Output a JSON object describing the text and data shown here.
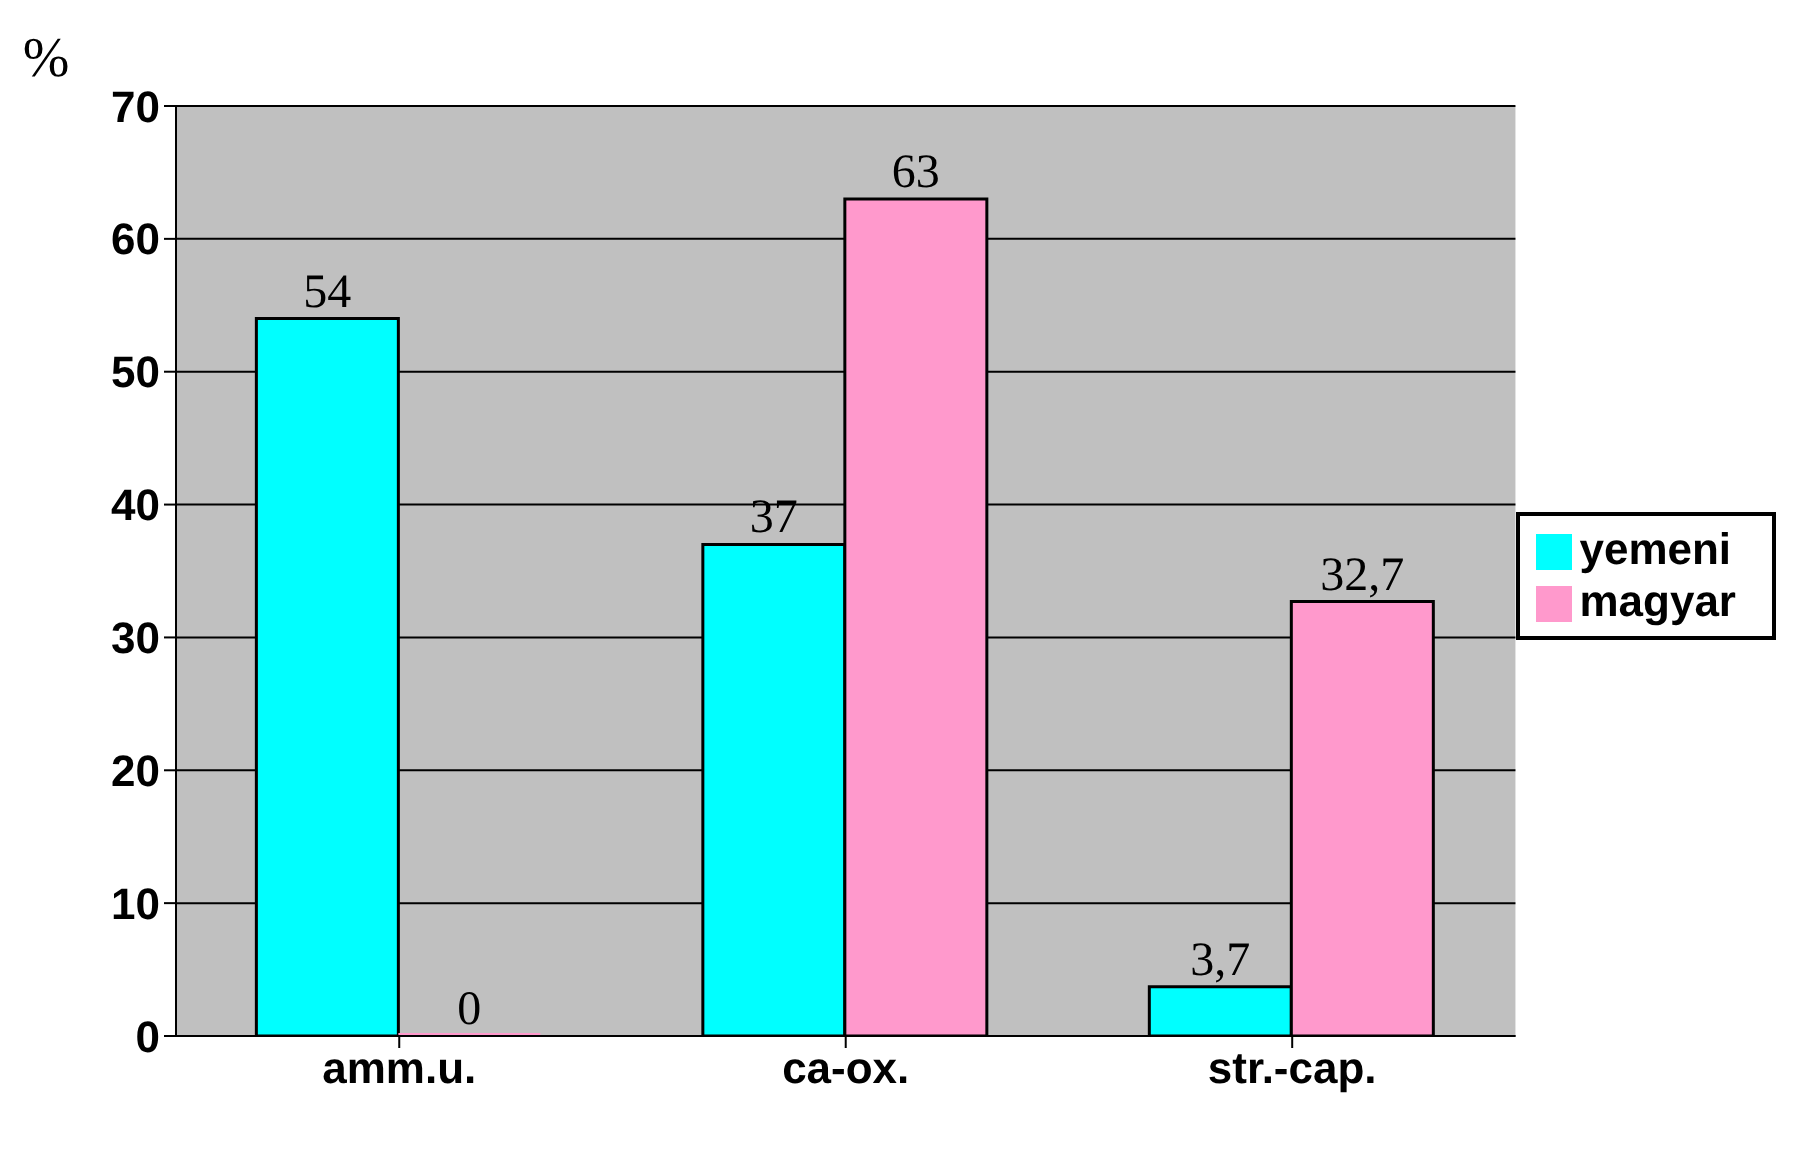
{
  "chart_data": {
    "type": "bar",
    "ylabel": "%",
    "categories": [
      "amm.u.",
      "ca-ox.",
      "str.-cap."
    ],
    "series": [
      {
        "name": "yemeni",
        "color": "#00ffff",
        "values": [
          54,
          37,
          3.7
        ],
        "value_labels": [
          "54",
          "37",
          "3,7"
        ]
      },
      {
        "name": "magyar",
        "color": "#ff99cc",
        "values": [
          0,
          63,
          32.7
        ],
        "value_labels": [
          "0",
          "63",
          "32,7"
        ]
      }
    ],
    "ylim": [
      0,
      70
    ],
    "yticks": [
      0,
      10,
      20,
      30,
      40,
      50,
      60,
      70
    ],
    "grid": "y",
    "legend": "right"
  }
}
